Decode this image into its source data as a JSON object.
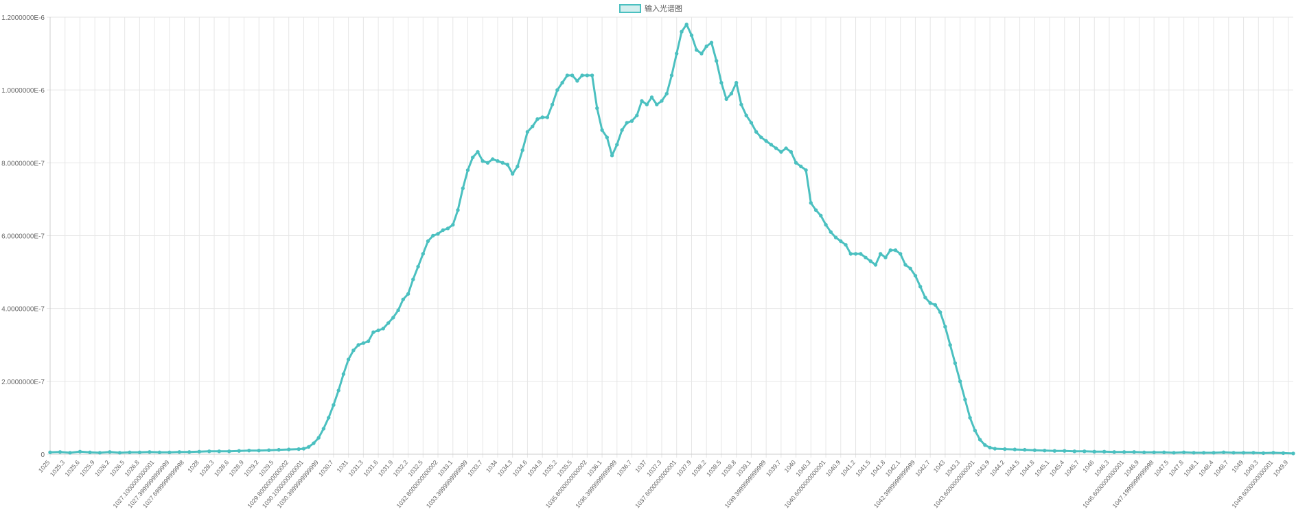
{
  "chart_data": {
    "type": "line",
    "title": "",
    "xlabel": "",
    "ylabel": "",
    "legend": {
      "position": "top",
      "label": "输入光谱图"
    },
    "series_color": "#4BC0C0",
    "series_fill": "#d3eeee",
    "grid": true,
    "x_range": [
      1025,
      1050
    ],
    "ylim": [
      0,
      1.2e-06
    ],
    "y_ticks": [
      {
        "value": 1.2e-06,
        "label": "1.2000000E-6"
      },
      {
        "value": 1e-06,
        "label": "1.0000000E-6"
      },
      {
        "value": 8e-07,
        "label": "8.0000000E-7"
      },
      {
        "value": 6e-07,
        "label": "6.0000000E-7"
      },
      {
        "value": 4e-07,
        "label": "4.0000000E-7"
      },
      {
        "value": 2e-07,
        "label": "2.0000000E-7"
      },
      {
        "value": 0,
        "label": "0"
      }
    ],
    "x_tick_labels": [
      "1025",
      "1025.3",
      "1025.6",
      "1025.9",
      "1026.2",
      "1026.5",
      "1026.8",
      "1027.1000000000001",
      "1027.3999999999999",
      "1027.6999999999998",
      "1028",
      "1028.3",
      "1028.6",
      "1028.9",
      "1029.2",
      "1029.5",
      "1029.8000000000002",
      "1030.1000000000001",
      "1030.3999999999999",
      "1030.7",
      "1031",
      "1031.3",
      "1031.6",
      "1031.9",
      "1032.2",
      "1032.5",
      "1032.8000000000002",
      "1033.1",
      "1033.3999999999999",
      "1033.7",
      "1034",
      "1034.3",
      "1034.6",
      "1034.9",
      "1035.2",
      "1035.5",
      "1035.8000000000002",
      "1036.1",
      "1036.3999999999999",
      "1036.7",
      "1037",
      "1037.3",
      "1037.6000000000001",
      "1037.9",
      "1038.2",
      "1038.5",
      "1038.8",
      "1039.1",
      "1039.3999999999999",
      "1039.7",
      "1040",
      "1040.3",
      "1040.6000000000001",
      "1040.9",
      "1041.2",
      "1041.5",
      "1041.8",
      "1042.1",
      "1042.3999999999999",
      "1042.7",
      "1043",
      "1043.3",
      "1043.6000000000001",
      "1043.9",
      "1044.2",
      "1044.5",
      "1044.8",
      "1045.1",
      "1045.4",
      "1045.7",
      "1046",
      "1046.3",
      "1046.6000000000001",
      "1046.9",
      "1047.1999999999998",
      "1047.5",
      "1047.8",
      "1048.1",
      "1048.4",
      "1048.7",
      "1049",
      "1049.3",
      "1049.6000000000001",
      "1049.9"
    ],
    "points": [
      [
        1025.0,
        5e-09
      ],
      [
        1025.2,
        6e-09
      ],
      [
        1025.4,
        4e-09
      ],
      [
        1025.6,
        7e-09
      ],
      [
        1025.8,
        5e-09
      ],
      [
        1026.0,
        4e-09
      ],
      [
        1026.2,
        6e-09
      ],
      [
        1026.4,
        4e-09
      ],
      [
        1026.6,
        5e-09
      ],
      [
        1026.8,
        5e-09
      ],
      [
        1027.0,
        6e-09
      ],
      [
        1027.2,
        5e-09
      ],
      [
        1027.4,
        5e-09
      ],
      [
        1027.6,
        6e-09
      ],
      [
        1027.8,
        6e-09
      ],
      [
        1028.0,
        7e-09
      ],
      [
        1028.2,
        8e-09
      ],
      [
        1028.4,
        8e-09
      ],
      [
        1028.6,
        8e-09
      ],
      [
        1028.8,
        9e-09
      ],
      [
        1029.0,
        1e-08
      ],
      [
        1029.2,
        1e-08
      ],
      [
        1029.4,
        1.1e-08
      ],
      [
        1029.6,
        1.2e-08
      ],
      [
        1029.8,
        1.3e-08
      ],
      [
        1030.0,
        1.4e-08
      ],
      [
        1030.1,
        1.5e-08
      ],
      [
        1030.2,
        2e-08
      ],
      [
        1030.3,
        3e-08
      ],
      [
        1030.4,
        4.5e-08
      ],
      [
        1030.5,
        7e-08
      ],
      [
        1030.6,
        1e-07
      ],
      [
        1030.7,
        1.35e-07
      ],
      [
        1030.8,
        1.75e-07
      ],
      [
        1030.9,
        2.2e-07
      ],
      [
        1031.0,
        2.6e-07
      ],
      [
        1031.1,
        2.85e-07
      ],
      [
        1031.2,
        3e-07
      ],
      [
        1031.3,
        3.05e-07
      ],
      [
        1031.4,
        3.1e-07
      ],
      [
        1031.5,
        3.35e-07
      ],
      [
        1031.6,
        3.4e-07
      ],
      [
        1031.7,
        3.45e-07
      ],
      [
        1031.8,
        3.6e-07
      ],
      [
        1031.9,
        3.75e-07
      ],
      [
        1032.0,
        3.95e-07
      ],
      [
        1032.1,
        4.25e-07
      ],
      [
        1032.2,
        4.4e-07
      ],
      [
        1032.3,
        4.8e-07
      ],
      [
        1032.4,
        5.15e-07
      ],
      [
        1032.5,
        5.5e-07
      ],
      [
        1032.6,
        5.85e-07
      ],
      [
        1032.7,
        6e-07
      ],
      [
        1032.8,
        6.05e-07
      ],
      [
        1032.9,
        6.15e-07
      ],
      [
        1033.0,
        6.2e-07
      ],
      [
        1033.1,
        6.3e-07
      ],
      [
        1033.2,
        6.7e-07
      ],
      [
        1033.3,
        7.3e-07
      ],
      [
        1033.4,
        7.8e-07
      ],
      [
        1033.5,
        8.15e-07
      ],
      [
        1033.6,
        8.3e-07
      ],
      [
        1033.7,
        8.05e-07
      ],
      [
        1033.8,
        8e-07
      ],
      [
        1033.9,
        8.1e-07
      ],
      [
        1034.0,
        8.05e-07
      ],
      [
        1034.1,
        8e-07
      ],
      [
        1034.2,
        7.95e-07
      ],
      [
        1034.3,
        7.7e-07
      ],
      [
        1034.4,
        7.9e-07
      ],
      [
        1034.5,
        8.35e-07
      ],
      [
        1034.6,
        8.85e-07
      ],
      [
        1034.7,
        9e-07
      ],
      [
        1034.8,
        9.2e-07
      ],
      [
        1034.9,
        9.25e-07
      ],
      [
        1035.0,
        9.25e-07
      ],
      [
        1035.1,
        9.6e-07
      ],
      [
        1035.2,
        1e-06
      ],
      [
        1035.3,
        1.02e-06
      ],
      [
        1035.4,
        1.04e-06
      ],
      [
        1035.5,
        1.04e-06
      ],
      [
        1035.6,
        1.025e-06
      ],
      [
        1035.7,
        1.04e-06
      ],
      [
        1035.8,
        1.04e-06
      ],
      [
        1035.9,
        1.04e-06
      ],
      [
        1036.0,
        9.5e-07
      ],
      [
        1036.1,
        8.9e-07
      ],
      [
        1036.2,
        8.7e-07
      ],
      [
        1036.3,
        8.2e-07
      ],
      [
        1036.4,
        8.5e-07
      ],
      [
        1036.5,
        8.9e-07
      ],
      [
        1036.6,
        9.1e-07
      ],
      [
        1036.7,
        9.15e-07
      ],
      [
        1036.8,
        9.3e-07
      ],
      [
        1036.9,
        9.7e-07
      ],
      [
        1037.0,
        9.6e-07
      ],
      [
        1037.1,
        9.8e-07
      ],
      [
        1037.2,
        9.6e-07
      ],
      [
        1037.3,
        9.7e-07
      ],
      [
        1037.4,
        9.9e-07
      ],
      [
        1037.5,
        1.04e-06
      ],
      [
        1037.6,
        1.1e-06
      ],
      [
        1037.7,
        1.16e-06
      ],
      [
        1037.8,
        1.18e-06
      ],
      [
        1037.9,
        1.15e-06
      ],
      [
        1038.0,
        1.11e-06
      ],
      [
        1038.1,
        1.1e-06
      ],
      [
        1038.2,
        1.12e-06
      ],
      [
        1038.3,
        1.13e-06
      ],
      [
        1038.4,
        1.08e-06
      ],
      [
        1038.5,
        1.02e-06
      ],
      [
        1038.6,
        9.75e-07
      ],
      [
        1038.7,
        9.9e-07
      ],
      [
        1038.8,
        1.02e-06
      ],
      [
        1038.9,
        9.6e-07
      ],
      [
        1039.0,
        9.3e-07
      ],
      [
        1039.1,
        9.1e-07
      ],
      [
        1039.2,
        8.85e-07
      ],
      [
        1039.3,
        8.7e-07
      ],
      [
        1039.4,
        8.6e-07
      ],
      [
        1039.5,
        8.5e-07
      ],
      [
        1039.6,
        8.4e-07
      ],
      [
        1039.7,
        8.3e-07
      ],
      [
        1039.8,
        8.4e-07
      ],
      [
        1039.9,
        8.3e-07
      ],
      [
        1040.0,
        8e-07
      ],
      [
        1040.1,
        7.9e-07
      ],
      [
        1040.2,
        7.8e-07
      ],
      [
        1040.3,
        6.9e-07
      ],
      [
        1040.4,
        6.7e-07
      ],
      [
        1040.5,
        6.55e-07
      ],
      [
        1040.6,
        6.3e-07
      ],
      [
        1040.7,
        6.1e-07
      ],
      [
        1040.8,
        5.95e-07
      ],
      [
        1040.9,
        5.85e-07
      ],
      [
        1041.0,
        5.75e-07
      ],
      [
        1041.1,
        5.5e-07
      ],
      [
        1041.2,
        5.5e-07
      ],
      [
        1041.3,
        5.5e-07
      ],
      [
        1041.4,
        5.4e-07
      ],
      [
        1041.5,
        5.3e-07
      ],
      [
        1041.6,
        5.2e-07
      ],
      [
        1041.7,
        5.5e-07
      ],
      [
        1041.8,
        5.4e-07
      ],
      [
        1041.9,
        5.6e-07
      ],
      [
        1042.0,
        5.6e-07
      ],
      [
        1042.1,
        5.5e-07
      ],
      [
        1042.2,
        5.2e-07
      ],
      [
        1042.3,
        5.1e-07
      ],
      [
        1042.4,
        4.9e-07
      ],
      [
        1042.5,
        4.6e-07
      ],
      [
        1042.6,
        4.3e-07
      ],
      [
        1042.7,
        4.15e-07
      ],
      [
        1042.8,
        4.1e-07
      ],
      [
        1042.9,
        3.9e-07
      ],
      [
        1043.0,
        3.5e-07
      ],
      [
        1043.1,
        3e-07
      ],
      [
        1043.2,
        2.5e-07
      ],
      [
        1043.3,
        2e-07
      ],
      [
        1043.4,
        1.5e-07
      ],
      [
        1043.5,
        1e-07
      ],
      [
        1043.6,
        6.5e-08
      ],
      [
        1043.7,
        4e-08
      ],
      [
        1043.8,
        2.5e-08
      ],
      [
        1043.9,
        1.8e-08
      ],
      [
        1044.0,
        1.5e-08
      ],
      [
        1044.2,
        1.4e-08
      ],
      [
        1044.4,
        1.3e-08
      ],
      [
        1044.6,
        1.2e-08
      ],
      [
        1044.8,
        1.1e-08
      ],
      [
        1045.0,
        1e-08
      ],
      [
        1045.2,
        9e-09
      ],
      [
        1045.4,
        9e-09
      ],
      [
        1045.6,
        8e-09
      ],
      [
        1045.8,
        8e-09
      ],
      [
        1046.0,
        7e-09
      ],
      [
        1046.2,
        7e-09
      ],
      [
        1046.4,
        6e-09
      ],
      [
        1046.6,
        6e-09
      ],
      [
        1046.8,
        6e-09
      ],
      [
        1047.0,
        5e-09
      ],
      [
        1047.2,
        5e-09
      ],
      [
        1047.4,
        5e-09
      ],
      [
        1047.6,
        4e-09
      ],
      [
        1047.8,
        5e-09
      ],
      [
        1048.0,
        4e-09
      ],
      [
        1048.2,
        4e-09
      ],
      [
        1048.4,
        4e-09
      ],
      [
        1048.6,
        5e-09
      ],
      [
        1048.8,
        4e-09
      ],
      [
        1049.0,
        4e-09
      ],
      [
        1049.2,
        4e-09
      ],
      [
        1049.4,
        3e-09
      ],
      [
        1049.6,
        4e-09
      ],
      [
        1049.8,
        3e-09
      ],
      [
        1050.0,
        2e-09
      ]
    ]
  }
}
